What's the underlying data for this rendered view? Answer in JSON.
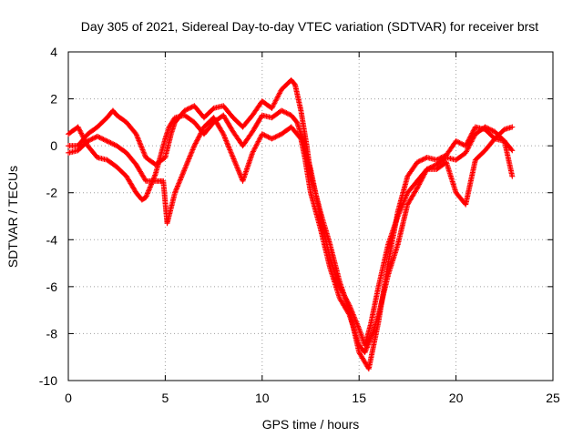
{
  "chart_data": {
    "type": "scatter",
    "title": "Day 305 of 2021, Sidereal Day-to-day VTEC variation (SDTVAR) for receiver brst",
    "xlabel": "GPS time / hours",
    "ylabel": "SDTVAR / TECUs",
    "xlim": [
      0,
      25
    ],
    "ylim": [
      -10,
      4
    ],
    "xticks": [
      "0",
      "5",
      "10",
      "15",
      "20",
      "25"
    ],
    "yticks": [
      "-10",
      "-8",
      "-6",
      "-4",
      "-2",
      "0",
      "2",
      "4"
    ],
    "grid": true,
    "marker": "plus",
    "colors": {
      "series": "#ff0000",
      "grid": "#a0a0a0",
      "axis": "#000000"
    },
    "series": [
      {
        "x": [
          0.0,
          0.5,
          1.0,
          1.5,
          2.0,
          2.5,
          3.0,
          3.5,
          3.8,
          4.0,
          4.5,
          5.0,
          5.2,
          5.5,
          6.0,
          6.5,
          7.0,
          7.5,
          8.0,
          8.5,
          9.0,
          9.5,
          10.0,
          10.5,
          11.0,
          11.5,
          11.8,
          12.0,
          12.5,
          13.0,
          13.5,
          14.0,
          14.5,
          15.0,
          15.3,
          15.6,
          16.0,
          16.5,
          17.0,
          17.5,
          18.0,
          18.5,
          19.0,
          19.5,
          20.0,
          20.5,
          21.0,
          21.5,
          22.0,
          22.5,
          22.9
        ],
        "y": [
          0.5,
          0.8,
          0.0,
          -0.5,
          -0.6,
          -0.9,
          -1.3,
          -2.0,
          -2.3,
          -2.2,
          -1.2,
          0.3,
          0.8,
          1.2,
          1.3,
          1.0,
          0.5,
          1.0,
          1.3,
          0.6,
          0.0,
          0.6,
          1.3,
          1.2,
          1.5,
          1.3,
          1.0,
          0.5,
          -1.0,
          -3.0,
          -4.8,
          -6.0,
          -6.8,
          -7.8,
          -8.5,
          -7.6,
          -6.0,
          -4.2,
          -3.0,
          -2.0,
          -1.5,
          -1.0,
          -0.8,
          -0.5,
          -0.6,
          -0.3,
          0.5,
          0.8,
          0.6,
          0.2,
          -1.3
        ]
      },
      {
        "x": [
          0.0,
          0.5,
          1.0,
          1.5,
          2.0,
          2.3,
          2.5,
          3.0,
          3.5,
          4.0,
          4.5,
          5.0,
          5.3,
          5.5,
          6.0,
          6.5,
          7.0,
          7.5,
          8.0,
          8.5,
          9.0,
          9.5,
          10.0,
          10.5,
          11.0,
          11.5,
          11.7,
          12.0,
          12.3,
          12.5,
          13.0,
          13.5,
          14.0,
          14.5,
          15.0,
          15.5,
          16.0,
          16.5,
          17.0,
          17.5,
          18.0,
          18.5,
          19.0,
          19.5,
          20.0,
          20.5,
          21.0,
          21.5,
          22.0,
          22.5,
          22.9
        ],
        "y": [
          0.0,
          0.0,
          0.5,
          0.8,
          1.2,
          1.5,
          1.3,
          1.0,
          0.5,
          -0.5,
          -0.8,
          -0.5,
          0.5,
          1.0,
          1.5,
          1.7,
          1.2,
          1.6,
          1.7,
          1.2,
          0.8,
          1.3,
          1.9,
          1.6,
          2.4,
          2.8,
          2.6,
          1.5,
          0.0,
          -1.2,
          -2.8,
          -4.2,
          -5.8,
          -7.0,
          -8.8,
          -9.5,
          -7.5,
          -5.0,
          -2.8,
          -1.3,
          -0.7,
          -0.5,
          -0.6,
          -0.4,
          0.2,
          0.0,
          0.8,
          0.7,
          0.3,
          0.7,
          0.8
        ]
      },
      {
        "x": [
          0.0,
          0.5,
          1.0,
          1.5,
          2.0,
          2.5,
          3.0,
          3.5,
          4.0,
          4.5,
          4.9,
          5.1,
          5.5,
          6.0,
          6.5,
          7.0,
          7.5,
          8.0,
          8.5,
          9.0,
          9.5,
          10.0,
          10.5,
          11.0,
          11.5,
          12.0,
          12.2,
          12.5,
          13.0,
          13.5,
          14.0,
          14.5,
          15.0,
          15.3,
          15.6,
          16.0,
          16.5,
          17.0,
          17.5,
          18.0,
          18.5,
          19.0,
          19.5,
          20.0,
          20.5,
          21.0,
          21.5,
          22.0,
          22.5,
          22.9
        ],
        "y": [
          -0.3,
          -0.2,
          0.2,
          0.4,
          0.2,
          0.0,
          -0.3,
          -0.8,
          -1.5,
          -1.5,
          -1.5,
          -3.3,
          -2.0,
          -1.0,
          0.0,
          0.8,
          1.2,
          0.5,
          -0.5,
          -1.5,
          -0.3,
          0.5,
          0.3,
          0.5,
          0.8,
          0.3,
          -0.5,
          -2.0,
          -3.5,
          -5.2,
          -6.5,
          -7.2,
          -8.5,
          -8.8,
          -8.2,
          -7.2,
          -5.5,
          -4.2,
          -2.5,
          -1.8,
          -1.0,
          -1.0,
          -0.7,
          -2.0,
          -2.5,
          -0.6,
          -0.2,
          0.3,
          0.2,
          -0.2
        ]
      }
    ]
  }
}
